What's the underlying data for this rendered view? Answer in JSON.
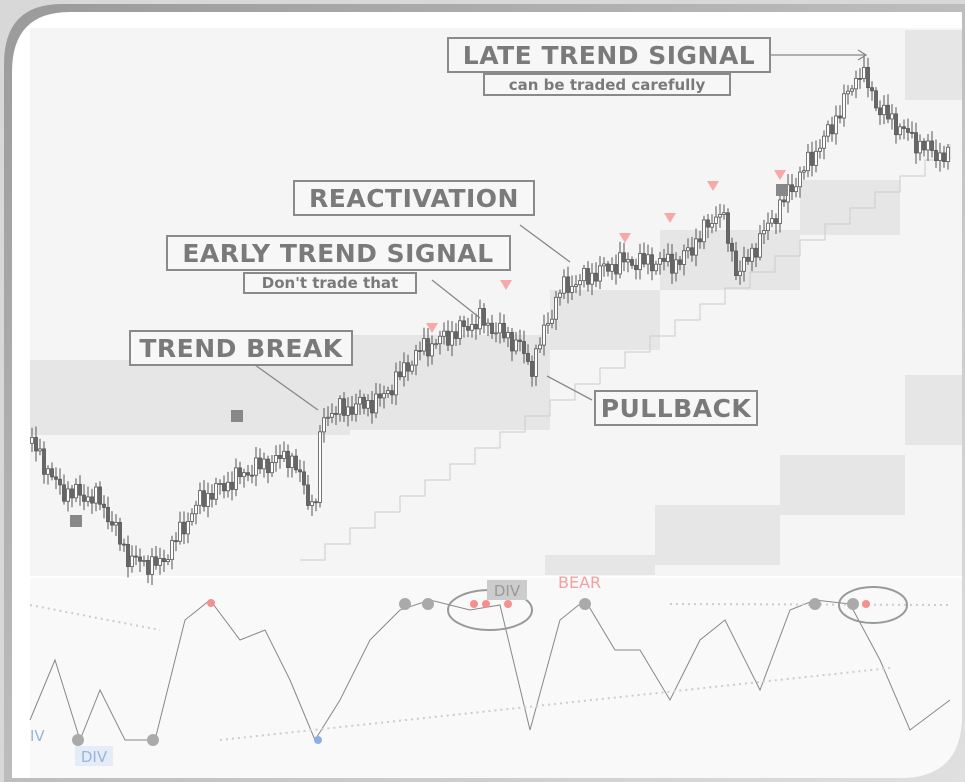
{
  "annotations": {
    "late_trend": {
      "title": "LATE TREND SIGNAL",
      "note": "can be traded carefully"
    },
    "reactivation": {
      "title": "REACTIVATION"
    },
    "early_trend": {
      "title": "EARLY TREND SIGNAL",
      "note": "Don't trade that"
    },
    "trend_break": {
      "title": "TREND BREAK"
    },
    "pullback": {
      "title": "PULLBACK"
    }
  },
  "oscillator_labels": {
    "div_top": "DIV",
    "bear": "BEAR",
    "div_bottom": "DIV",
    "iv_left": "IV"
  }
}
